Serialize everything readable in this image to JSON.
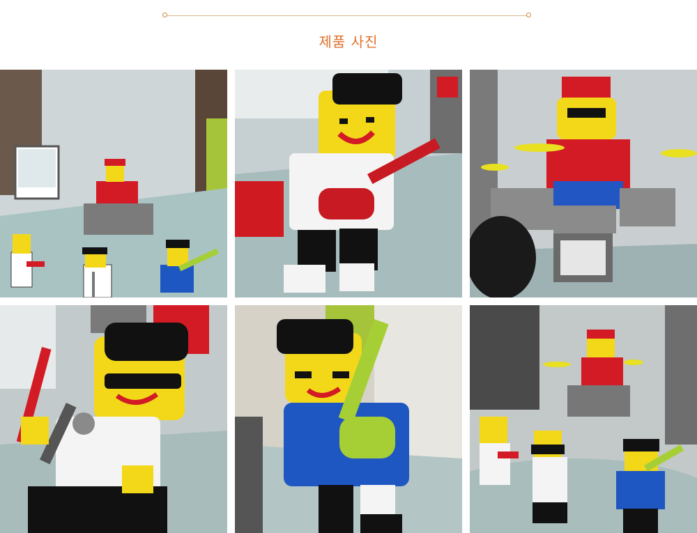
{
  "section": {
    "title": "제품 사진"
  },
  "photos": [
    {
      "subject": "band-full-lineup"
    },
    {
      "subject": "guitarist-white"
    },
    {
      "subject": "drummer-red"
    },
    {
      "subject": "singer-sunglasses"
    },
    {
      "subject": "guitarist-blue"
    },
    {
      "subject": "band-full-lineup-2"
    }
  ],
  "colors": {
    "accent": "#e0702c",
    "rule": "#d8b88a"
  }
}
